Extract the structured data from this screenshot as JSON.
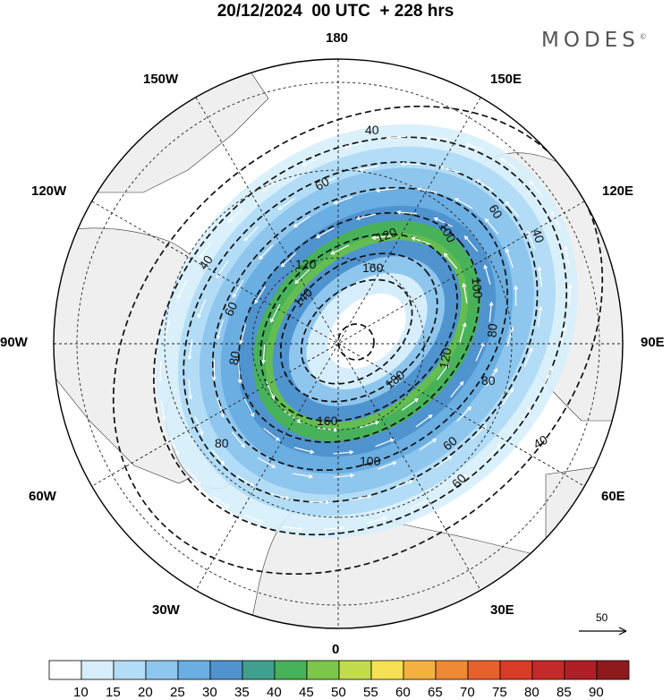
{
  "title": "20/12/2024  00 UTC  + 228 hrs",
  "logo": {
    "text": "MODES",
    "mark": "©"
  },
  "longitude_labels": {
    "n": "180",
    "nne": "150E",
    "ene": "120E",
    "e": "90E",
    "ese": "60E",
    "sse": "30E",
    "s": "0",
    "ssw": "30W",
    "wsw": "60W",
    "w": "90W",
    "wnw": "120W",
    "nnw": "150W"
  },
  "contour_labels": [
    "40",
    "40",
    "40",
    "40",
    "60",
    "60",
    "60",
    "60",
    "60",
    "80",
    "80",
    "80",
    "80",
    "100",
    "100",
    "100",
    "120",
    "120",
    "120",
    "140",
    "160",
    "160",
    "180"
  ],
  "reference_vector": {
    "label": "50",
    "icon": "arrow-right-icon"
  },
  "colorbar": {
    "labels": [
      "10",
      "15",
      "20",
      "25",
      "30",
      "35",
      "40",
      "45",
      "50",
      "55",
      "60",
      "65",
      "70",
      "75",
      "80",
      "85",
      "90"
    ],
    "colors": [
      "#ffffff",
      "#d6eefb",
      "#b3ddf6",
      "#8ec6ee",
      "#6aaee2",
      "#4f93cf",
      "#3fa08f",
      "#47b25a",
      "#7cc64b",
      "#c2dc4e",
      "#f6e154",
      "#f4b142",
      "#ee8a35",
      "#e8612c",
      "#d93b27",
      "#c52a2a",
      "#b01f25",
      "#8f1a1d"
    ]
  }
}
